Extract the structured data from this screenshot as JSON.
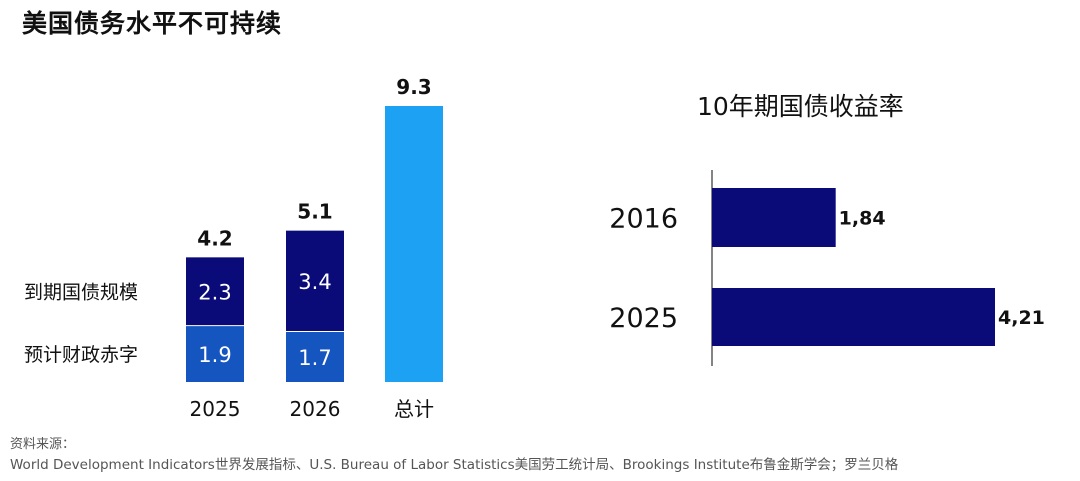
{
  "title": "美国债务水平不可持续",
  "source_label": "资料来源：",
  "source_text": "World Development Indicators世界发展指标、U.S. Bureau of Labor Statistics美国劳工统计局、Brookings Institute布鲁金斯学会；罗兰贝格",
  "colors": {
    "dark_navy": "#0a0a78",
    "medium_blue": "#1555c0",
    "light_blue": "#1da1f2",
    "text": "#111111",
    "axis": "#333333"
  },
  "chart_data": [
    {
      "type": "bar",
      "stacked": true,
      "title": "",
      "categories": [
        "2025",
        "2026",
        "总计"
      ],
      "series": [
        {
          "name": "预计财政赤字",
          "values": [
            1.9,
            1.7,
            null
          ],
          "color": "#1555c0"
        },
        {
          "name": "到期国债规模",
          "values": [
            2.3,
            3.4,
            null
          ],
          "color": "#0a0a78"
        },
        {
          "name": "",
          "values": [
            null,
            null,
            9.3
          ],
          "color": "#1da1f2"
        }
      ],
      "totals": [
        "4.2",
        "5.1",
        "9.3"
      ],
      "segment_labels": {
        "2025": [
          "1.9",
          "2.3"
        ],
        "2026": [
          "1.7",
          "3.4"
        ]
      },
      "legend_placement": "left",
      "ylim": [
        0,
        9.3
      ],
      "grid": false
    },
    {
      "type": "bar",
      "orientation": "horizontal",
      "title": "10年期国债收益率",
      "categories": [
        "2016",
        "2025"
      ],
      "values": [
        1.84,
        4.21
      ],
      "value_labels": [
        "1,84",
        "4,21"
      ],
      "color": "#0a0a78",
      "xlim": [
        0,
        4.21
      ],
      "grid": false
    }
  ]
}
